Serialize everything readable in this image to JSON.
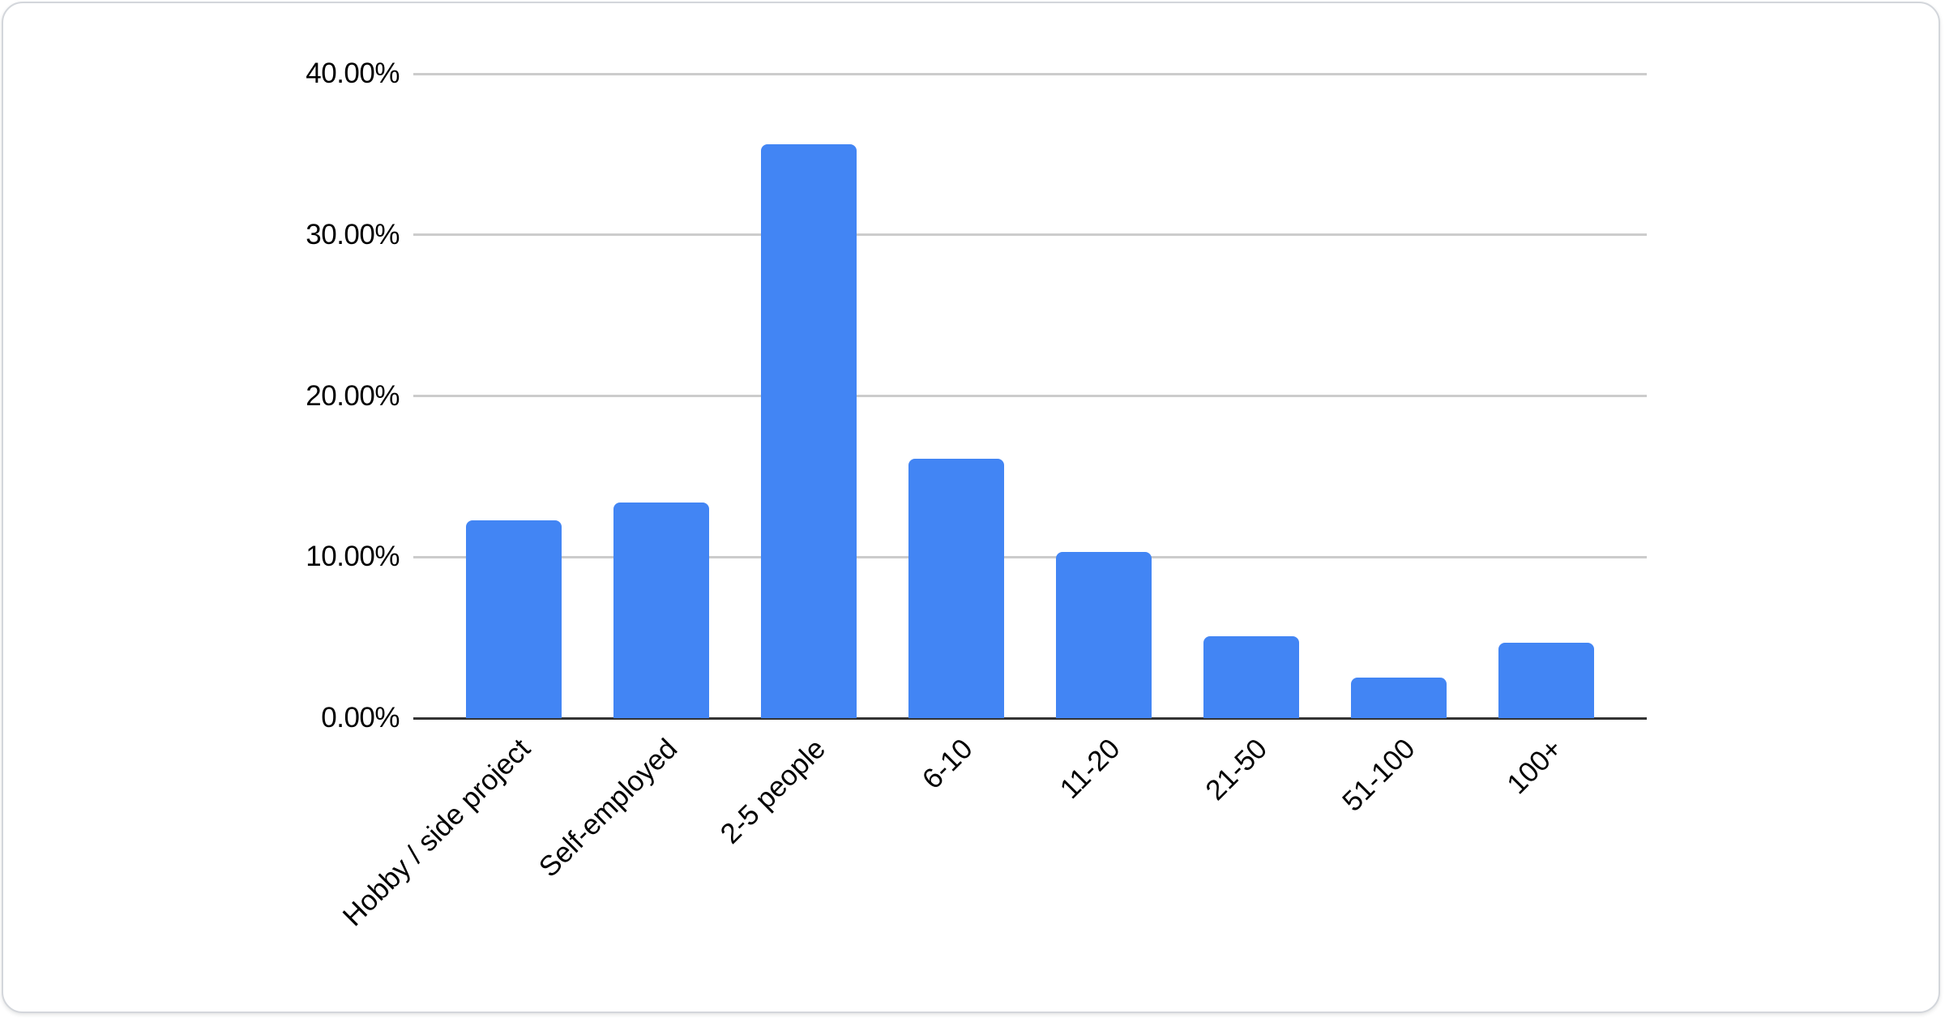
{
  "chart_data": {
    "type": "bar",
    "title": "",
    "xlabel": "",
    "ylabel": "",
    "categories": [
      "Hobby / side project",
      "Self-employed",
      "2-5 people",
      "6-10",
      "11-20",
      "21-50",
      "51-100",
      "100+"
    ],
    "values": [
      12.3,
      13.4,
      35.6,
      16.1,
      10.3,
      5.1,
      2.5,
      4.7
    ],
    "value_format": "percent",
    "ylim": [
      0,
      40
    ],
    "y_ticks": [
      "40.00%",
      "30.00%",
      "20.00%",
      "10.00%",
      "0.00%"
    ],
    "y_tick_values": [
      40,
      30,
      20,
      10,
      0
    ],
    "grid": true,
    "legend_position": "none",
    "x_label_rotation_deg": -45,
    "bar_color": "#4285f4",
    "gridline_color": "#cccccc",
    "baseline_color": "#333333",
    "text_color": "#000000"
  }
}
